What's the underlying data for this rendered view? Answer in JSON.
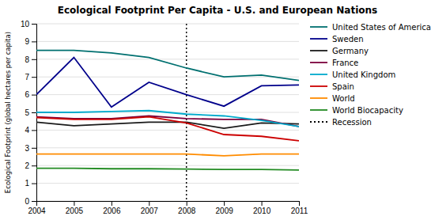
{
  "chart_data": {
    "type": "line",
    "title": "Ecological Footprint Per Capita - U.S. and European Nations",
    "y_label": "Ecological Footprint (global hectares per capita)",
    "x": [
      2004,
      2005,
      2006,
      2007,
      2008,
      2009,
      2010,
      2011
    ],
    "xlim": [
      2004,
      2011
    ],
    "xticks": [
      2004,
      2005,
      2006,
      2007,
      2008,
      2009,
      2010,
      2011
    ],
    "ylim": [
      0,
      10
    ],
    "yticks": [
      0,
      1,
      2,
      3,
      4,
      5,
      6,
      7,
      8,
      9,
      10
    ],
    "grid": true,
    "legend": "right",
    "series": [
      {
        "name": "United States of America",
        "color": "#007070",
        "values": [
          8.5,
          8.5,
          8.35,
          8.1,
          7.5,
          7.0,
          7.1,
          6.8
        ]
      },
      {
        "name": "Sweden",
        "color": "#00008B",
        "values": [
          6.0,
          8.1,
          5.3,
          6.7,
          6.0,
          5.35,
          6.5,
          6.55
        ]
      },
      {
        "name": "Germany",
        "color": "#1a1a1a",
        "values": [
          4.45,
          4.25,
          4.35,
          4.45,
          4.45,
          4.1,
          4.4,
          4.35
        ]
      },
      {
        "name": "France",
        "color": "#7B003C",
        "values": [
          4.75,
          4.65,
          4.65,
          4.8,
          4.65,
          4.6,
          4.6,
          4.2
        ]
      },
      {
        "name": "United Kingdom",
        "color": "#00AACC",
        "values": [
          5.0,
          5.0,
          5.05,
          5.1,
          4.9,
          4.8,
          4.55,
          4.2
        ]
      },
      {
        "name": "Spain",
        "color": "#CC0000",
        "values": [
          4.7,
          4.6,
          4.6,
          4.75,
          4.4,
          3.75,
          3.65,
          3.4
        ]
      },
      {
        "name": "World",
        "color": "#FF8C00",
        "values": [
          2.65,
          2.65,
          2.65,
          2.65,
          2.65,
          2.55,
          2.65,
          2.65
        ]
      },
      {
        "name": "World Biocapacity",
        "color": "#228B22",
        "values": [
          1.85,
          1.85,
          1.82,
          1.82,
          1.8,
          1.78,
          1.78,
          1.75
        ]
      }
    ],
    "annotations": [
      {
        "x": 2008,
        "label": "Recession",
        "color": "black",
        "line_style": "dotted"
      }
    ]
  }
}
